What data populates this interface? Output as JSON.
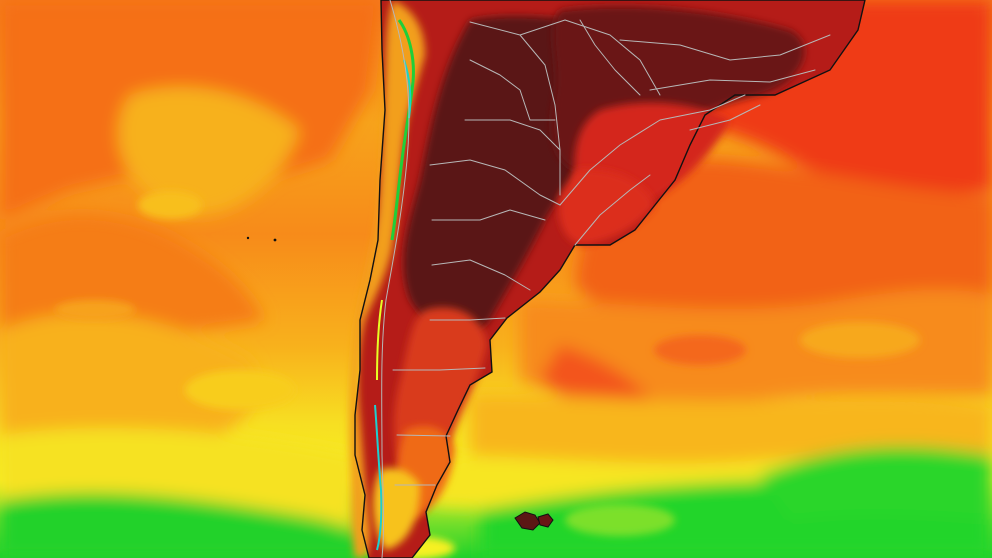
{
  "map": {
    "kind": "temperature-heatmap",
    "region": "southern-south-america",
    "labels_shown": false,
    "colors": {
      "very_hot": "#5a1414",
      "hot": "#8b1515",
      "warm_red": "#d8261b",
      "orange_red": "#f04a18",
      "orange": "#f6841a",
      "amber": "#f9a81c",
      "yellow": "#f7e323",
      "yellow_green": "#c6ec21",
      "green": "#24d62b",
      "border_line": "#b7b7b7",
      "coast_line": "#111111"
    }
  }
}
